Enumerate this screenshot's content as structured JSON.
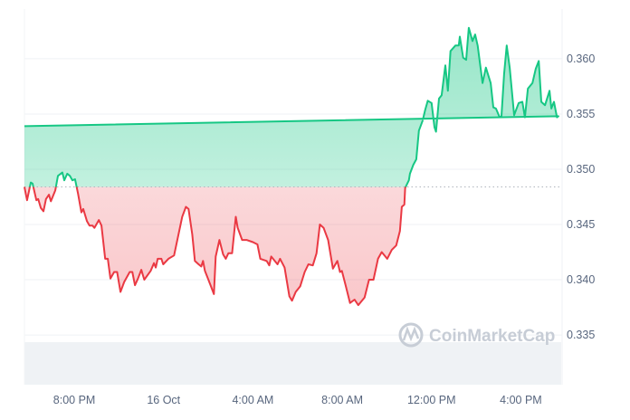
{
  "chart_data": {
    "type": "area",
    "title": "",
    "xlabel": "",
    "ylabel": "",
    "ylim": [
      0.3305,
      0.3645
    ],
    "y_ticks": [
      "0.335",
      "0.340",
      "0.345",
      "0.350",
      "0.355",
      "0.360"
    ],
    "x_ticks": [
      {
        "label": "8:00 PM",
        "time": "20:00"
      },
      {
        "label": "16 Oct",
        "time": "00:00"
      },
      {
        "label": "4:00 AM",
        "time": "04:00"
      },
      {
        "label": "8:00 AM",
        "time": "08:00"
      },
      {
        "label": "12:00 PM",
        "time": "12:00"
      },
      {
        "label": "4:00 PM",
        "time": "16:00"
      }
    ],
    "grid": true,
    "baseline": 0.3484,
    "colors": {
      "up": "#16c784",
      "down": "#ea3943",
      "grid": "#eff2f5",
      "volume": "#eff2f5",
      "axis_text": "#58667e"
    },
    "series": [
      {
        "time": [
          "17:46",
          "17:53",
          "18:03",
          "18:08",
          "18:18",
          "18:23",
          "18:30",
          "18:37",
          "18:44",
          "18:52",
          "18:57",
          "19:09",
          "19:16",
          "19:28",
          "19:33",
          "19:41",
          "19:48",
          "19:55",
          "20:02",
          "20:10",
          "20:19",
          "20:24",
          "20:34",
          "20:41",
          "20:49",
          "20:54",
          "21:06",
          "21:13",
          "21:23",
          "21:30",
          "21:37",
          "21:47",
          "21:55",
          "22:04",
          "22:14",
          "22:29",
          "22:36",
          "22:43",
          "22:51",
          "23:00",
          "23:08",
          "23:25",
          "23:34",
          "23:39",
          "23:44",
          "23:54",
          "23:59",
          "00:13",
          "00:28",
          "00:50",
          "01:00",
          "01:07",
          "01:17",
          "01:24",
          "01:34",
          "01:41",
          "01:46",
          "01:51",
          "01:58",
          "02:06",
          "02:15",
          "02:20",
          "02:30",
          "02:40",
          "02:47",
          "02:54",
          "03:04",
          "03:14",
          "03:19",
          "03:31",
          "03:43",
          "04:00",
          "04:12",
          "04:20",
          "04:37",
          "04:44",
          "04:49",
          "05:06",
          "05:13",
          "05:25",
          "05:38",
          "05:45",
          "05:55",
          "06:07",
          "06:19",
          "06:29",
          "06:41",
          "06:51",
          "07:00",
          "07:10",
          "07:22",
          "07:35",
          "07:47",
          "07:54",
          "07:59",
          "08:09",
          "08:21",
          "08:33",
          "08:43",
          "09:00",
          "09:12",
          "09:24",
          "09:36",
          "09:46",
          "10:01",
          "10:13",
          "10:25",
          "10:35",
          "10:40",
          "10:47",
          "10:49",
          "10:59",
          "11:02",
          "11:11",
          "11:19",
          "11:26",
          "11:36",
          "11:43",
          "11:50",
          "12:00",
          "12:08",
          "12:12",
          "12:20",
          "12:27",
          "12:37",
          "12:44",
          "12:51",
          "13:04",
          "13:13",
          "13:16",
          "13:25",
          "13:33",
          "13:40",
          "13:50",
          "13:57",
          "14:04",
          "14:17",
          "14:26",
          "14:39",
          "14:46",
          "14:53",
          "15:03",
          "15:08",
          "15:15",
          "15:22",
          "15:30",
          "15:42",
          "15:54",
          "16:04",
          "16:11",
          "16:19",
          "16:31",
          "16:40",
          "16:48",
          "16:55",
          "17:05",
          "17:17",
          "17:22",
          "17:29",
          "17:37",
          "17:41",
          "17:46"
        ],
        "price": [
          0.3484,
          0.3472,
          0.3488,
          0.3487,
          0.3472,
          0.3473,
          0.3465,
          0.3462,
          0.3473,
          0.3477,
          0.3471,
          0.3481,
          0.3494,
          0.3497,
          0.349,
          0.3496,
          0.3494,
          0.349,
          0.3491,
          0.3478,
          0.3461,
          0.3464,
          0.3453,
          0.3449,
          0.3449,
          0.3447,
          0.3454,
          0.3449,
          0.3419,
          0.3419,
          0.3401,
          0.3407,
          0.3407,
          0.3389,
          0.3398,
          0.3407,
          0.3407,
          0.3395,
          0.3401,
          0.3409,
          0.34,
          0.3408,
          0.3415,
          0.3411,
          0.3419,
          0.3419,
          0.3414,
          0.3419,
          0.3422,
          0.3457,
          0.3466,
          0.3464,
          0.3441,
          0.3417,
          0.3414,
          0.3412,
          0.3417,
          0.3408,
          0.3402,
          0.3395,
          0.3387,
          0.3421,
          0.3436,
          0.3423,
          0.3419,
          0.3424,
          0.3424,
          0.3457,
          0.3447,
          0.3436,
          0.3436,
          0.3434,
          0.3432,
          0.3419,
          0.3417,
          0.3413,
          0.3421,
          0.3414,
          0.3419,
          0.3411,
          0.3385,
          0.3381,
          0.3389,
          0.3394,
          0.3407,
          0.3414,
          0.3413,
          0.3424,
          0.345,
          0.3447,
          0.3436,
          0.341,
          0.3417,
          0.3407,
          0.3408,
          0.3395,
          0.3379,
          0.3382,
          0.3377,
          0.3384,
          0.34,
          0.34,
          0.3419,
          0.3425,
          0.3419,
          0.3427,
          0.3431,
          0.3444,
          0.3466,
          0.3468,
          0.3483,
          0.349,
          0.3496,
          0.3504,
          0.3509,
          0.3535,
          0.3544,
          0.3554,
          0.3562,
          0.356,
          0.3538,
          0.3534,
          0.3564,
          0.3567,
          0.3594,
          0.3571,
          0.3607,
          0.3612,
          0.3612,
          0.362,
          0.3601,
          0.3599,
          0.3628,
          0.3616,
          0.3622,
          0.3612,
          0.3578,
          0.3592,
          0.3578,
          0.3556,
          0.3555,
          0.3547,
          0.3548,
          0.3586,
          0.3612,
          0.3592,
          0.3549,
          0.356,
          0.3561,
          0.3547,
          0.3573,
          0.3578,
          0.3591,
          0.3598,
          0.3561,
          0.3558,
          0.3571,
          0.3555,
          0.3561,
          0.3547,
          0.3548,
          0.3539
        ]
      }
    ]
  },
  "watermark": {
    "text": "CoinMarketCap"
  }
}
